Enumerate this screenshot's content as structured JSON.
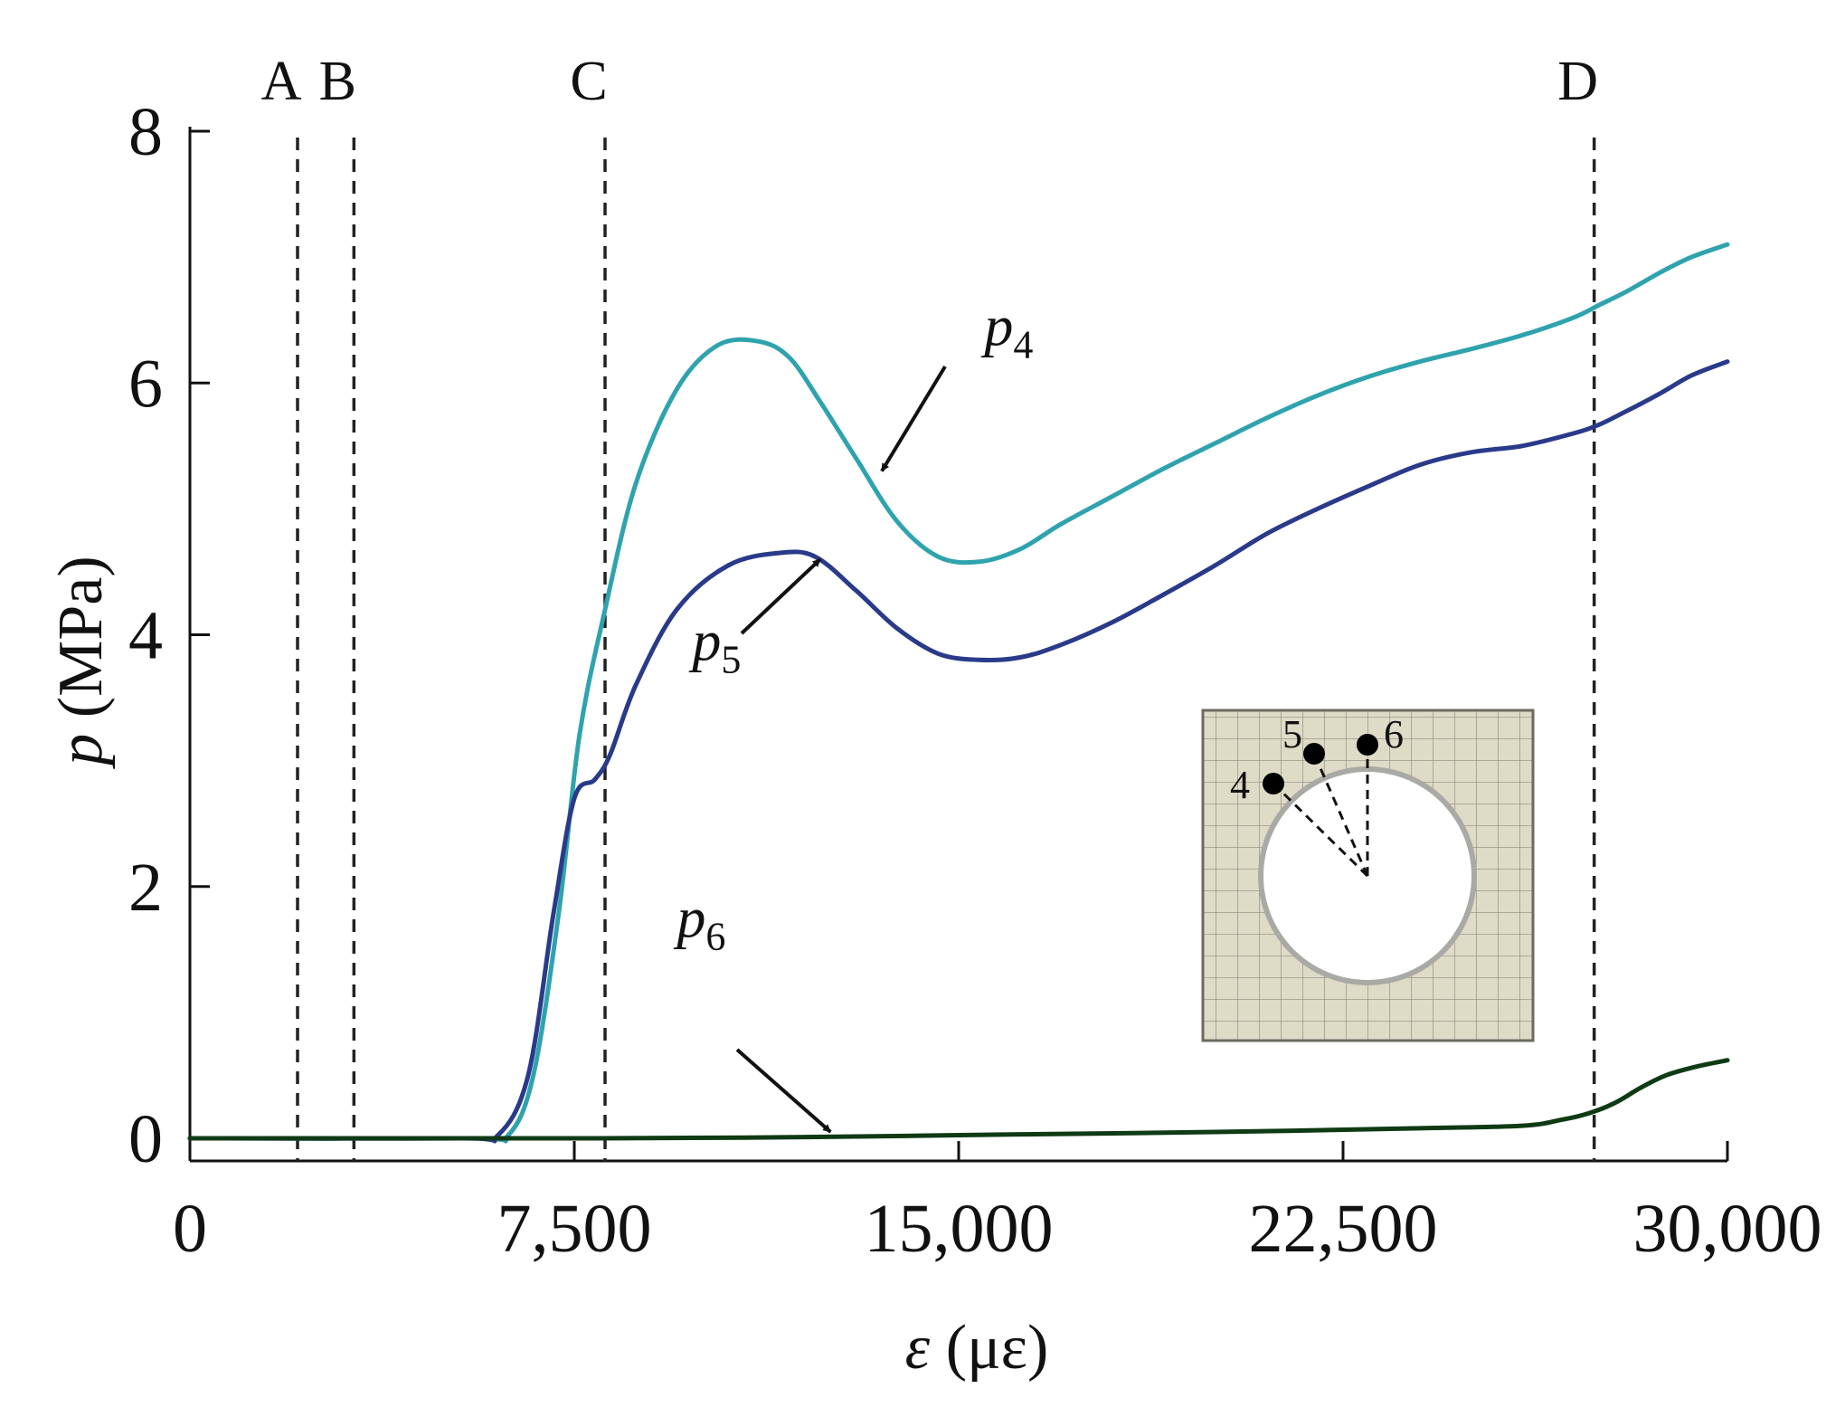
{
  "chart_data": {
    "type": "line",
    "title": "",
    "xlabel": "ε (με)",
    "ylabel": "p (MPa)",
    "xlabel_var": "ε",
    "xlabel_unit": "(με)",
    "ylabel_var": "p",
    "ylabel_unit": "(MPa)",
    "xlim": [
      0,
      30000
    ],
    "ylim": [
      -0.2,
      8
    ],
    "xticks": [
      0,
      7500,
      15000,
      22500,
      30000
    ],
    "xtick_labels": [
      "0",
      "7,500",
      "15,000",
      "22,500",
      "30,000"
    ],
    "yticks": [
      0,
      2,
      4,
      6,
      8
    ],
    "ytick_labels": [
      "0",
      "2",
      "4",
      "6",
      "8"
    ],
    "grid": false,
    "vertical_markers": [
      {
        "label": "A",
        "x": 2100
      },
      {
        "label": "B",
        "x": 3200
      },
      {
        "label": "C",
        "x": 8100
      },
      {
        "label": "D",
        "x": 27400
      }
    ],
    "series": [
      {
        "name": "p4",
        "symbol": "p",
        "subscript": "4",
        "color": "#2fa3ad",
        "x": [
          0,
          5500,
          6200,
          6700,
          7200,
          7600,
          8100,
          8700,
          9500,
          10300,
          11100,
          11700,
          12300,
          13000,
          13800,
          14600,
          15400,
          16200,
          17000,
          18000,
          19000,
          20000,
          21000,
          22000,
          23000,
          24000,
          25000,
          26000,
          27000,
          27500,
          28000,
          28700,
          29300,
          30000
        ],
        "y": [
          0,
          0,
          0.02,
          0.5,
          1.8,
          3.2,
          4.2,
          5.2,
          5.95,
          6.3,
          6.33,
          6.2,
          5.85,
          5.4,
          4.9,
          4.62,
          4.58,
          4.68,
          4.88,
          5.1,
          5.32,
          5.52,
          5.72,
          5.9,
          6.05,
          6.17,
          6.27,
          6.38,
          6.52,
          6.62,
          6.72,
          6.88,
          7.0,
          7.1
        ]
      },
      {
        "name": "p5",
        "symbol": "p",
        "subscript": "5",
        "color": "#2a3a8a",
        "x": [
          0,
          5300,
          6000,
          6600,
          7100,
          7500,
          7900,
          8200,
          8700,
          9500,
          10500,
          11500,
          12200,
          13000,
          13800,
          14600,
          15400,
          16200,
          17000,
          18000,
          19000,
          20000,
          21000,
          22000,
          23000,
          24000,
          25000,
          26000,
          27000,
          27500,
          28000,
          28700,
          29300,
          30000
        ],
        "y": [
          0,
          0,
          0.02,
          0.5,
          1.8,
          2.7,
          2.85,
          3.05,
          3.6,
          4.2,
          4.55,
          4.65,
          4.62,
          4.35,
          4.05,
          3.85,
          3.8,
          3.82,
          3.92,
          4.1,
          4.32,
          4.55,
          4.8,
          5.0,
          5.18,
          5.35,
          5.45,
          5.5,
          5.6,
          5.67,
          5.77,
          5.92,
          6.06,
          6.17
        ]
      },
      {
        "name": "p6",
        "symbol": "p",
        "subscript": "6",
        "color": "#0e3a14",
        "x": [
          0,
          8000,
          12000,
          16000,
          20000,
          24000,
          26000,
          26800,
          27300,
          27800,
          28300,
          28800,
          29400,
          30000
        ],
        "y": [
          0,
          0,
          0.01,
          0.03,
          0.05,
          0.08,
          0.1,
          0.15,
          0.2,
          0.28,
          0.4,
          0.5,
          0.57,
          0.62
        ]
      }
    ],
    "annotations": [
      {
        "series": "p4",
        "text_symbol": "p",
        "text_sub": "4",
        "text_x": 15500,
        "text_y": 6.3,
        "point_x": 13500,
        "point_y": 5.3
      },
      {
        "series": "p5",
        "text_symbol": "p",
        "text_sub": "5",
        "text_x": 9800,
        "text_y": 3.8,
        "point_x": 12300,
        "point_y": 4.6
      },
      {
        "series": "p6",
        "text_symbol": "p",
        "text_sub": "6",
        "text_x": 9500,
        "text_y": 1.6,
        "point_x": 12500,
        "point_y": 0.05
      }
    ],
    "inset": {
      "description": "mesh of square section with circular hole",
      "point_labels": [
        "4",
        "5",
        "6"
      ]
    }
  }
}
